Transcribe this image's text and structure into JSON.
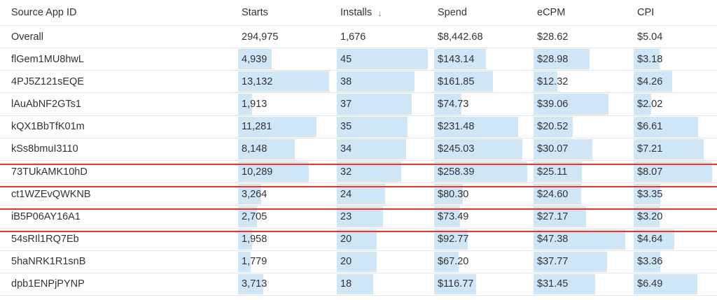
{
  "columns": {
    "source_app_id": "Source App ID",
    "starts": "Starts",
    "installs": "Installs",
    "installs_sort_icon": "↓",
    "spend": "Spend",
    "ecpm": "eCPM",
    "cpi": "CPI"
  },
  "overall": {
    "label": "Overall",
    "starts": "294,975",
    "installs": "1,676",
    "spend": "$8,442.68",
    "ecpm": "$28.62",
    "cpi": "$5.04"
  },
  "rows": [
    {
      "id": "flGem1MU8hwL",
      "starts": "4,939",
      "installs": "45",
      "spend": "$143.14",
      "ecpm": "$28.98",
      "cpi": "$3.18",
      "bars": {
        "starts": 0.37,
        "installs": 1.0,
        "spend": 0.56,
        "ecpm": 0.61,
        "cpi": 0.33
      }
    },
    {
      "id": "4PJ5Z121sEQE",
      "starts": "13,132",
      "installs": "38",
      "spend": "$161.85",
      "ecpm": "$12.32",
      "cpi": "$4.26",
      "bars": {
        "starts": 1.0,
        "installs": 0.85,
        "spend": 0.63,
        "ecpm": 0.26,
        "cpi": 0.49
      }
    },
    {
      "id": "lAuAbNF2GTs1",
      "starts": "1,913",
      "installs": "37",
      "spend": "$74.73",
      "ecpm": "$39.06",
      "cpi": "$2.02",
      "bars": {
        "starts": 0.15,
        "installs": 0.82,
        "spend": 0.29,
        "ecpm": 0.82,
        "cpi": 0.22
      }
    },
    {
      "id": "kQX1BbTfK01m",
      "starts": "11,281",
      "installs": "35",
      "spend": "$231.48",
      "ecpm": "$20.52",
      "cpi": "$6.61",
      "bars": {
        "starts": 0.86,
        "installs": 0.78,
        "spend": 0.9,
        "ecpm": 0.43,
        "cpi": 0.82
      }
    },
    {
      "id": "kSs8bmuI3110",
      "starts": "8,148",
      "installs": "34",
      "spend": "$245.03",
      "ecpm": "$30.07",
      "cpi": "$7.21",
      "bars": {
        "starts": 0.62,
        "installs": 0.76,
        "spend": 0.95,
        "ecpm": 0.64,
        "cpi": 0.89
      }
    },
    {
      "id": "73TUkAMK10hD",
      "starts": "10,289",
      "installs": "32",
      "spend": "$258.39",
      "ecpm": "$25.11",
      "cpi": "$8.07",
      "bars": {
        "starts": 0.78,
        "installs": 0.71,
        "spend": 1.0,
        "ecpm": 0.53,
        "cpi": 1.0
      }
    },
    {
      "id": "ct1WZEvQWKNB",
      "starts": "3,264",
      "installs": "24",
      "spend": "$80.30",
      "ecpm": "$24.60",
      "cpi": "$3.35",
      "bars": {
        "starts": 0.25,
        "installs": 0.53,
        "spend": 0.31,
        "ecpm": 0.52,
        "cpi": 0.34
      }
    },
    {
      "id": "iB5P06AY16A1",
      "starts": "2,705",
      "installs": "23",
      "spend": "$73.49",
      "ecpm": "$27.17",
      "cpi": "$3.20",
      "bars": {
        "starts": 0.21,
        "installs": 0.51,
        "spend": 0.28,
        "ecpm": 0.57,
        "cpi": 0.33
      }
    },
    {
      "id": "54sRIl1RQ7Eb",
      "starts": "1,958",
      "installs": "20",
      "spend": "$92.77",
      "ecpm": "$47.38",
      "cpi": "$4.64",
      "bars": {
        "starts": 0.15,
        "installs": 0.44,
        "spend": 0.36,
        "ecpm": 1.0,
        "cpi": 0.52
      }
    },
    {
      "id": "5haNRK1R1snB",
      "starts": "1,779",
      "installs": "20",
      "spend": "$67.20",
      "ecpm": "$37.77",
      "cpi": "$3.36",
      "bars": {
        "starts": 0.14,
        "installs": 0.44,
        "spend": 0.26,
        "ecpm": 0.8,
        "cpi": 0.34
      }
    },
    {
      "id": "dpb1ENPjPYNP",
      "starts": "3,713",
      "installs": "18",
      "spend": "$116.77",
      "ecpm": "$31.45",
      "cpi": "$6.49",
      "bars": {
        "starts": 0.28,
        "installs": 0.4,
        "spend": 0.45,
        "ecpm": 0.67,
        "cpi": 0.81
      }
    }
  ],
  "highlighted_rows": [
    "kQX1BbTfK01m",
    "kSs8bmuI3110",
    "73TUkAMK10hD"
  ],
  "colors": {
    "bar": "#cfe6f7",
    "highlight": "#e8372a",
    "divider": "#e6e6e6"
  }
}
